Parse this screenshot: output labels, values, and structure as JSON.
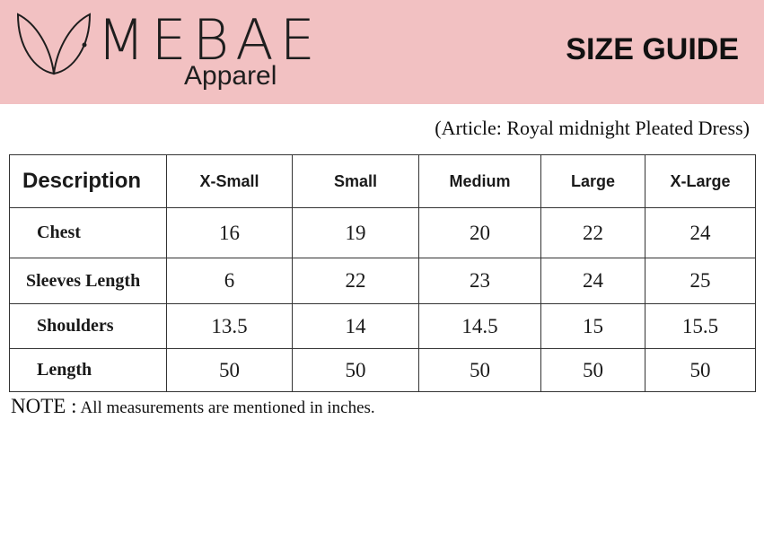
{
  "header": {
    "brand": "MEBAE",
    "subtitle": "Apparel",
    "title": "SIZE GUIDE",
    "logo_icon": "leaf-outline-icon",
    "background_color": "#f2c1c2"
  },
  "article": "(Article: Royal midnight Pleated Dress)",
  "table": {
    "headers": [
      "Description",
      "X-Small",
      "Small",
      "Medium",
      "Large",
      "X-Large"
    ],
    "rows": [
      {
        "label": "Chest",
        "values": [
          "16",
          "19",
          "20",
          "22",
          "24"
        ]
      },
      {
        "label": "Sleeves Length",
        "values": [
          "6",
          "22",
          "23",
          "24",
          "25"
        ]
      },
      {
        "label": "Shoulders",
        "values": [
          "13.5",
          "14",
          "14.5",
          "15",
          "15.5"
        ]
      },
      {
        "label": "Length",
        "values": [
          "50",
          "50",
          "50",
          "50",
          "50"
        ]
      }
    ]
  },
  "note": {
    "label": "NOTE :",
    "text": "All measurements are mentioned in inches."
  }
}
